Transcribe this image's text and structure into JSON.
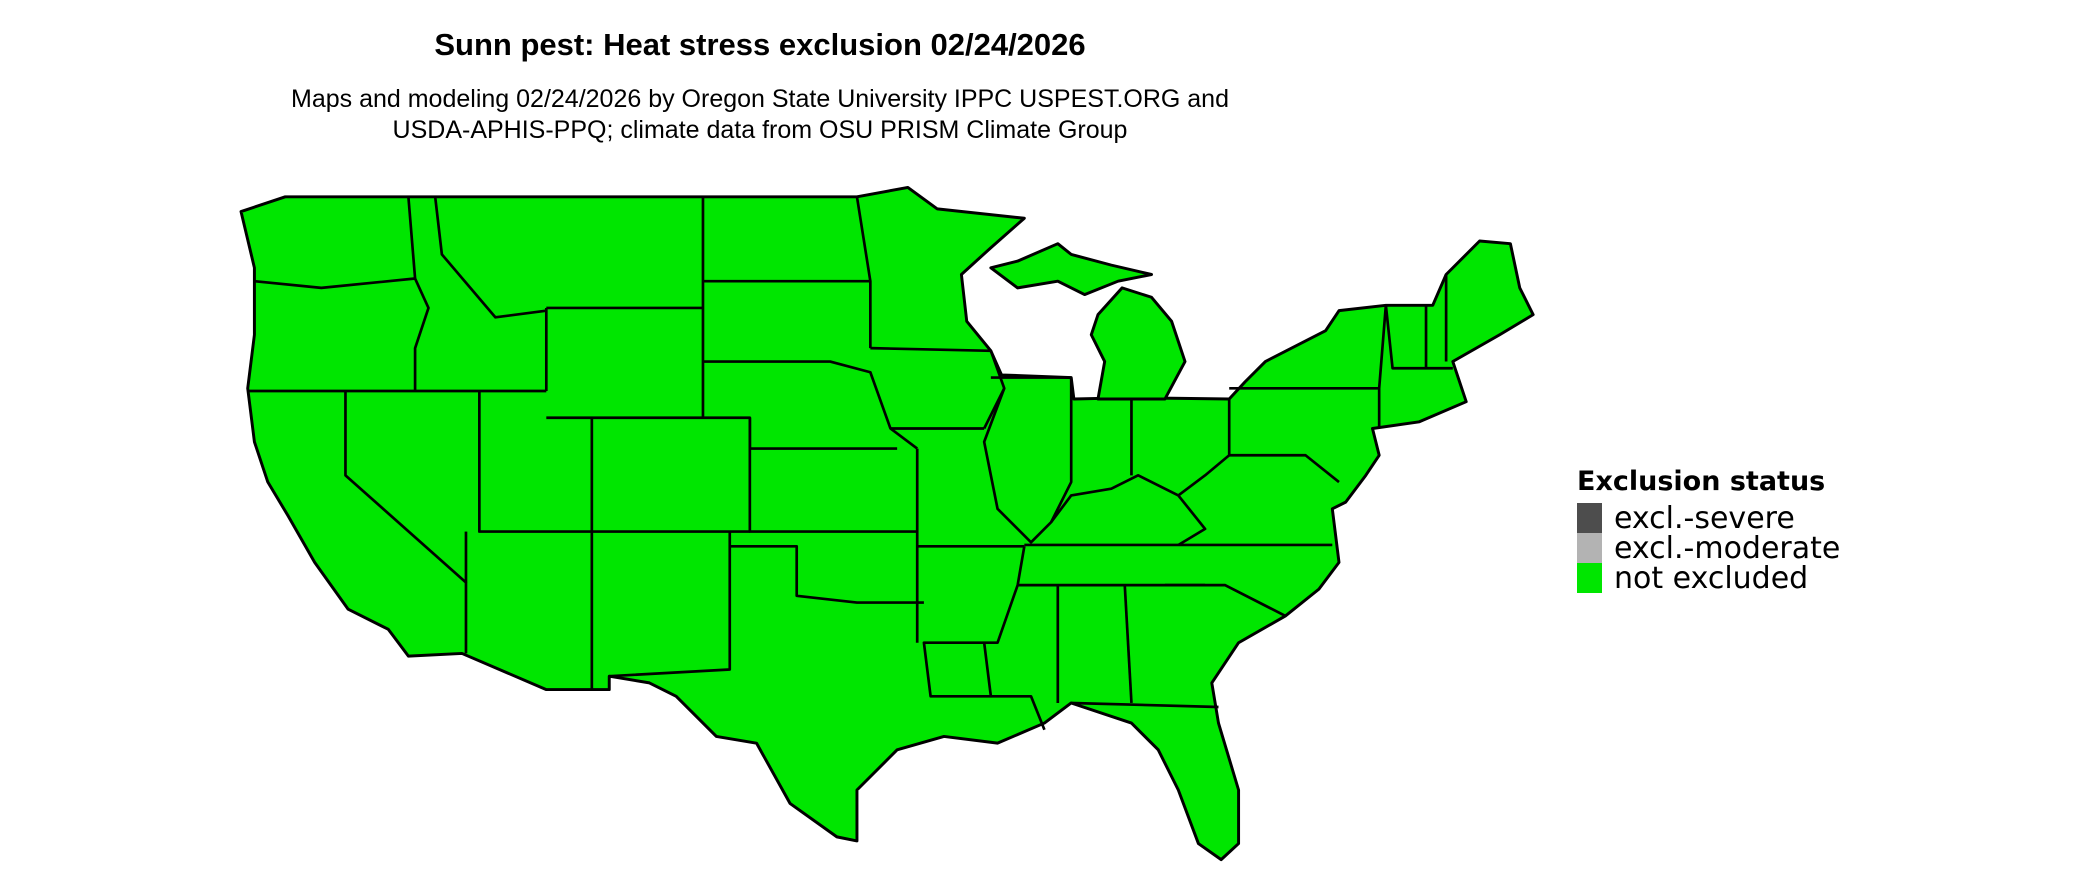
{
  "title": "Sunn pest: Heat stress exclusion 02/24/2026",
  "subtitle_line1": "Maps and modeling 02/24/2026 by Oregon State University IPPC USPEST.ORG and",
  "subtitle_line2": "USDA-APHIS-PPQ; climate data from OSU PRISM Climate Group",
  "map": {
    "region": "Contiguous United States",
    "fill_status": "not excluded",
    "boundary_color": "#000000"
  },
  "legend": {
    "title": "Exclusion status",
    "items": [
      {
        "label": "excl.-severe",
        "color": "#4d4d4d"
      },
      {
        "label": "excl.-moderate",
        "color": "#b3b3b3"
      },
      {
        "label": "not excluded",
        "color": "#00e600"
      }
    ]
  }
}
